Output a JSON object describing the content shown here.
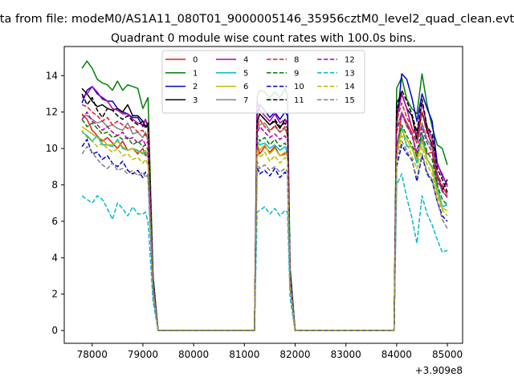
{
  "chart_data": {
    "type": "line",
    "suptitle": "ta from file: modeM0/AS1A11_080T01_9000005146_35956cztM0_level2_quad_clean.evt",
    "title": "Quadrant 0 module wise count rates with 100.0s bins.",
    "xlabel": "",
    "ylabel": "",
    "x_offset_label": "+3.909e8",
    "xlim": [
      77450,
      85300
    ],
    "ylim": [
      -0.7,
      15.6
    ],
    "xticks": [
      78000,
      79000,
      80000,
      81000,
      82000,
      83000,
      84000,
      85000
    ],
    "xtick_labels": [
      "78000",
      "79000",
      "80000",
      "81000",
      "82000",
      "83000",
      "84000",
      "85000"
    ],
    "yticks": [
      0,
      2,
      4,
      6,
      8,
      10,
      12,
      14
    ],
    "ytick_labels": [
      "0",
      "2",
      "4",
      "6",
      "8",
      "10",
      "12",
      "14"
    ],
    "legend_position": "upper-center",
    "legend_ncols": 4,
    "x": [
      77800,
      77900,
      78000,
      78100,
      78200,
      78300,
      78400,
      78500,
      78600,
      78700,
      78800,
      78900,
      79000,
      79050,
      79100,
      79200,
      79300,
      81100,
      81200,
      81250,
      81300,
      81400,
      81500,
      81600,
      81700,
      81800,
      81850,
      81900,
      82000,
      83900,
      83950,
      84000,
      84100,
      84200,
      84300,
      84400,
      84500,
      84600,
      84700,
      84800,
      84900,
      85000
    ],
    "series": [
      {
        "name": "0",
        "color": "#e41a1c",
        "dash": "solid",
        "values": [
          11.9,
          11.6,
          11.0,
          10.7,
          10.4,
          10.6,
          10.3,
          10.0,
          10.4,
          9.9,
          10.0,
          9.7,
          10.0,
          9.6,
          9.8,
          2.5,
          0,
          0,
          0,
          10.2,
          9.7,
          10.1,
          9.8,
          10.1,
          9.6,
          9.7,
          9.9,
          2.8,
          0,
          0,
          0,
          9.7,
          12.0,
          11.4,
          10.9,
          9.5,
          10.5,
          9.7,
          9.8,
          8.1,
          7.9,
          7.5
        ]
      },
      {
        "name": "1",
        "color": "#008000",
        "dash": "solid",
        "values": [
          14.4,
          14.8,
          14.4,
          13.8,
          13.6,
          13.5,
          13.2,
          13.7,
          13.2,
          13.5,
          13.4,
          13.3,
          12.2,
          12.5,
          12.8,
          3.0,
          0,
          0,
          0,
          12.8,
          13.2,
          13.1,
          12.8,
          13.1,
          12.8,
          13.3,
          12.9,
          3.5,
          0,
          0,
          0,
          13.3,
          13.9,
          12.7,
          12.2,
          11.9,
          14.1,
          12.4,
          11.2,
          10.2,
          10.0,
          9.1
        ]
      },
      {
        "name": "2",
        "color": "#0000cc",
        "dash": "solid",
        "values": [
          12.5,
          13.2,
          13.4,
          13.0,
          12.8,
          12.6,
          12.6,
          12.2,
          12.0,
          11.9,
          11.7,
          11.7,
          11.2,
          11.6,
          11.2,
          2.8,
          0,
          0,
          0,
          11.8,
          12.4,
          12.1,
          11.7,
          12.0,
          11.6,
          12.0,
          11.8,
          3.2,
          0,
          0,
          0,
          11.3,
          14.1,
          13.8,
          12.8,
          11.5,
          13.0,
          12.2,
          11.5,
          9.2,
          8.5,
          8.0
        ]
      },
      {
        "name": "3",
        "color": "#000000",
        "dash": "solid",
        "values": [
          13.3,
          13.0,
          12.6,
          12.3,
          12.4,
          12.2,
          12.1,
          12.2,
          12.0,
          12.4,
          11.8,
          11.8,
          11.5,
          11.2,
          11.4,
          2.8,
          0,
          0,
          0,
          11.4,
          11.9,
          11.6,
          11.3,
          11.5,
          11.1,
          11.6,
          11.4,
          3.1,
          0,
          0,
          0,
          12.5,
          13.0,
          12.2,
          11.8,
          10.5,
          12.0,
          11.0,
          10.1,
          8.6,
          7.7,
          8.3
        ]
      },
      {
        "name": "4",
        "color": "#b000b0",
        "dash": "solid",
        "values": [
          12.8,
          13.0,
          13.4,
          13.1,
          12.7,
          12.6,
          12.2,
          12.1,
          11.9,
          11.9,
          11.6,
          11.4,
          11.3,
          11.6,
          11.1,
          2.7,
          0,
          0,
          0,
          12.6,
          12.1,
          11.8,
          11.5,
          11.9,
          11.4,
          11.6,
          11.3,
          3.0,
          0,
          0,
          0,
          11.6,
          13.0,
          12.2,
          11.1,
          10.8,
          12.5,
          11.2,
          10.5,
          9.1,
          8.6,
          7.9
        ]
      },
      {
        "name": "5",
        "color": "#00bbcc",
        "dash": "solid",
        "values": [
          10.9,
          10.7,
          10.4,
          10.7,
          10.2,
          10.2,
          10.1,
          10.5,
          10.0,
          9.9,
          10.0,
          9.9,
          9.7,
          9.8,
          9.5,
          2.4,
          0,
          0,
          0,
          10.4,
          10.2,
          10.3,
          10.0,
          10.2,
          9.9,
          10.1,
          9.8,
          2.7,
          0,
          0,
          0,
          9.8,
          11.2,
          10.1,
          10.1,
          9.2,
          10.8,
          9.4,
          9.0,
          7.9,
          6.8,
          6.9
        ]
      },
      {
        "name": "6",
        "color": "#bbbb00",
        "dash": "solid",
        "values": [
          11.2,
          11.0,
          10.8,
          10.6,
          10.5,
          10.2,
          10.2,
          10.4,
          10.1,
          9.9,
          10.0,
          9.8,
          9.8,
          9.9,
          9.6,
          2.4,
          0,
          0,
          0,
          10.3,
          9.9,
          10.2,
          9.7,
          10.0,
          9.6,
          9.8,
          9.6,
          2.7,
          0,
          0,
          0,
          9.8,
          11.0,
          10.5,
          10.0,
          9.4,
          10.4,
          9.4,
          8.9,
          7.6,
          6.7,
          6.6
        ]
      },
      {
        "name": "7",
        "color": "#808080",
        "dash": "solid",
        "values": [
          11.8,
          11.8,
          11.6,
          11.4,
          11.5,
          11.2,
          11.3,
          11.1,
          11.0,
          11.4,
          10.8,
          10.9,
          10.6,
          10.9,
          10.4,
          2.6,
          0,
          0,
          0,
          11.1,
          11.3,
          11.4,
          11.0,
          11.2,
          10.9,
          11.1,
          10.7,
          2.9,
          0,
          0,
          0,
          11.1,
          12.0,
          11.2,
          10.8,
          10.3,
          11.4,
          10.5,
          10.0,
          8.5,
          7.6,
          7.4
        ]
      },
      {
        "name": "8",
        "color": "#e41a1c",
        "dash": "dashed",
        "values": [
          12.4,
          12.3,
          12.0,
          11.8,
          11.5,
          11.7,
          11.3,
          11.5,
          11.3,
          11.1,
          11.2,
          10.9,
          11.0,
          10.7,
          10.9,
          2.7,
          0,
          0,
          0,
          11.1,
          11.6,
          11.2,
          10.9,
          11.3,
          10.9,
          11.2,
          10.8,
          3.0,
          0,
          0,
          0,
          11.5,
          12.5,
          11.7,
          11.2,
          10.3,
          12.0,
          10.8,
          10.3,
          8.6,
          8.0,
          7.4
        ]
      },
      {
        "name": "9",
        "color": "#008000",
        "dash": "dashed",
        "values": [
          11.6,
          11.2,
          11.4,
          11.1,
          10.8,
          10.9,
          10.6,
          10.7,
          10.5,
          10.6,
          10.2,
          10.4,
          10.1,
          10.2,
          9.9,
          2.5,
          0,
          0,
          0,
          10.8,
          10.4,
          10.6,
          10.2,
          10.5,
          10.1,
          10.3,
          10.0,
          2.8,
          0,
          0,
          0,
          10.2,
          11.3,
          10.7,
          10.2,
          9.6,
          10.9,
          9.8,
          9.4,
          8.0,
          7.2,
          6.9
        ]
      },
      {
        "name": "10",
        "color": "#0000cc",
        "dash": "dashed",
        "values": [
          10.1,
          10.5,
          9.7,
          9.8,
          9.4,
          9.6,
          9.2,
          9.0,
          9.3,
          8.8,
          8.6,
          8.8,
          8.4,
          8.7,
          8.5,
          2.1,
          0,
          0,
          0,
          9.0,
          8.6,
          8.8,
          8.5,
          8.9,
          8.4,
          8.7,
          8.5,
          2.4,
          0,
          0,
          0,
          9.0,
          10.2,
          9.7,
          9.4,
          8.2,
          9.6,
          8.6,
          8.2,
          7.1,
          6.3,
          6.0
        ]
      },
      {
        "name": "11",
        "color": "#000000",
        "dash": "dashed",
        "values": [
          13.0,
          12.4,
          12.8,
          12.1,
          11.7,
          12.2,
          12.1,
          11.8,
          11.6,
          11.8,
          11.5,
          11.3,
          11.5,
          11.1,
          11.3,
          2.8,
          0,
          0,
          0,
          11.5,
          11.9,
          11.6,
          11.3,
          11.6,
          11.2,
          11.4,
          11.1,
          3.1,
          0,
          0,
          0,
          12.0,
          13.2,
          12.6,
          11.9,
          10.9,
          12.7,
          11.2,
          10.8,
          8.9,
          8.3,
          7.6
        ]
      },
      {
        "name": "12",
        "color": "#b000b0",
        "dash": "dashed",
        "values": [
          11.6,
          12.0,
          11.5,
          11.3,
          11.0,
          11.2,
          10.9,
          10.7,
          10.9,
          10.5,
          10.6,
          10.3,
          10.5,
          10.2,
          10.4,
          2.6,
          0,
          0,
          0,
          10.8,
          11.2,
          10.9,
          10.6,
          10.8,
          10.5,
          10.7,
          10.4,
          2.9,
          0,
          0,
          0,
          10.9,
          11.9,
          11.3,
          10.7,
          9.8,
          11.2,
          10.3,
          9.8,
          8.4,
          7.7,
          7.3
        ]
      },
      {
        "name": "13",
        "color": "#00bbcc",
        "dash": "dashed",
        "values": [
          7.4,
          7.2,
          7.0,
          7.4,
          7.2,
          6.7,
          6.1,
          7.0,
          6.7,
          6.3,
          6.8,
          6.4,
          6.4,
          6.5,
          6.0,
          1.6,
          0,
          0,
          0,
          6.5,
          6.6,
          6.8,
          6.4,
          6.7,
          6.3,
          6.6,
          6.5,
          1.8,
          0,
          0,
          0,
          8.0,
          8.6,
          7.3,
          6.2,
          4.8,
          7.4,
          6.4,
          5.8,
          5.0,
          4.3,
          4.4
        ]
      },
      {
        "name": "14",
        "color": "#bbbb00",
        "dash": "dashed",
        "values": [
          11.0,
          10.6,
          10.4,
          10.1,
          10.3,
          10.0,
          9.8,
          10.0,
          9.6,
          9.7,
          9.4,
          9.5,
          9.2,
          9.4,
          9.1,
          2.3,
          0,
          0,
          0,
          9.9,
          9.5,
          9.8,
          9.3,
          9.6,
          9.2,
          9.5,
          9.3,
          2.6,
          0,
          0,
          0,
          9.5,
          10.7,
          10.3,
          9.6,
          8.9,
          10.1,
          9.1,
          8.6,
          7.4,
          6.6,
          6.3
        ]
      },
      {
        "name": "15",
        "color": "#808080",
        "dash": "dashed",
        "values": [
          9.7,
          10.1,
          9.8,
          9.4,
          9.1,
          8.9,
          9.2,
          8.8,
          8.9,
          8.6,
          8.8,
          8.5,
          8.7,
          8.4,
          8.6,
          2.2,
          0,
          0,
          0,
          9.3,
          8.9,
          9.1,
          8.8,
          9.0,
          8.7,
          8.9,
          8.7,
          2.4,
          0,
          0,
          0,
          9.2,
          10.4,
          9.9,
          9.3,
          8.4,
          9.7,
          8.7,
          8.3,
          7.1,
          6.1,
          5.6
        ]
      }
    ]
  }
}
